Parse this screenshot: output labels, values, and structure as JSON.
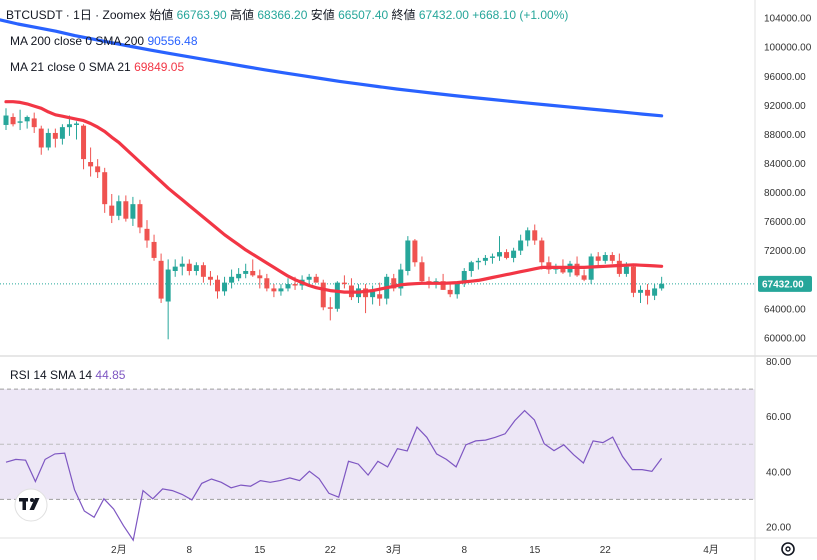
{
  "header": {
    "symbol": "BTCUSDT",
    "interval": "1日",
    "exchange": "Zoomex",
    "ohlc_labels": {
      "open": "始値",
      "high": "高値",
      "low": "安値",
      "close": "終値"
    },
    "open": "66763.90",
    "high": "68366.20",
    "low": "66507.40",
    "close": "67432.00",
    "change": "+668.10",
    "change_pct": "(+1.00%)"
  },
  "legends": {
    "ma200_label": "MA 200 close 0 SMA 200",
    "ma200_value": "90556.48",
    "ma21_label": "MA 21 close 0 SMA 21",
    "ma21_value": "69849.05",
    "rsi_label": "RSI 14 SMA 14",
    "rsi_value": "44.85"
  },
  "colors": {
    "up": "#26a69a",
    "down": "#ef5350",
    "ma200": "#2962ff",
    "ma21": "#f23645",
    "rsi": "#7e57c2",
    "rsi_band": "#ede7f6",
    "last_price_tag": "#26a69a"
  },
  "last_price_tag": "67432.00",
  "chart_data": [
    {
      "type": "candlestick",
      "title": "BTCUSDT · 1日 · Zoomex",
      "price_axis_ticks": [
        60000,
        64000,
        68000,
        72000,
        76000,
        80000,
        84000,
        88000,
        92000,
        96000,
        100000,
        104000
      ],
      "price_axis_labels": [
        "60000.00",
        "64000.00",
        "68000.00",
        "72000.00",
        "76000.00",
        "80000.00",
        "84000.00",
        "88000.00",
        "92000.00",
        "96000.00",
        "100000.00",
        "104000.00"
      ],
      "ylim": [
        57500,
        106500
      ],
      "x_tick_labels": [
        {
          "label": "2月",
          "index": 16
        },
        {
          "label": "8",
          "index": 26
        },
        {
          "label": "15",
          "index": 36
        },
        {
          "label": "22",
          "index": 46
        },
        {
          "label": "3月",
          "index": 55
        },
        {
          "label": "8",
          "index": 65
        },
        {
          "label": "15",
          "index": 75
        },
        {
          "label": "22",
          "index": 85
        },
        {
          "label": "4月",
          "index": 100
        }
      ],
      "candles": [
        [
          89300,
          91600,
          88600,
          90600
        ],
        [
          90400,
          90900,
          89100,
          89400
        ],
        [
          89600,
          91400,
          88600,
          89800
        ],
        [
          89800,
          90600,
          88800,
          90400
        ],
        [
          90200,
          91000,
          88200,
          89000
        ],
        [
          88800,
          89200,
          85200,
          86200
        ],
        [
          86200,
          88800,
          85800,
          88200
        ],
        [
          88200,
          88800,
          86200,
          87400
        ],
        [
          87400,
          89400,
          86600,
          89000
        ],
        [
          89000,
          90600,
          87800,
          89400
        ],
        [
          89300,
          89800,
          87300,
          89500
        ],
        [
          89200,
          89400,
          83200,
          84600
        ],
        [
          84200,
          86200,
          82200,
          83600
        ],
        [
          83600,
          84600,
          82000,
          82800
        ],
        [
          82800,
          83400,
          77200,
          78400
        ],
        [
          78200,
          79800,
          75800,
          76800
        ],
        [
          76800,
          79600,
          76200,
          78800
        ],
        [
          78800,
          79600,
          76000,
          76400
        ],
        [
          76400,
          79400,
          75400,
          78400
        ],
        [
          78400,
          79000,
          74400,
          75200
        ],
        [
          75000,
          76200,
          72400,
          73400
        ],
        [
          73200,
          74200,
          70600,
          71000
        ],
        [
          70600,
          71600,
          64800,
          65400
        ],
        [
          65000,
          70800,
          59800,
          69400
        ],
        [
          69200,
          70800,
          68400,
          69800
        ],
        [
          69800,
          71200,
          68600,
          70200
        ],
        [
          70200,
          70800,
          68600,
          69200
        ],
        [
          69200,
          70400,
          68600,
          70000
        ],
        [
          70000,
          70400,
          67600,
          68400
        ],
        [
          68400,
          69200,
          67200,
          68000
        ],
        [
          68000,
          68600,
          65400,
          66400
        ],
        [
          66400,
          68400,
          65800,
          67600
        ],
        [
          67600,
          69400,
          66800,
          68400
        ],
        [
          68200,
          69600,
          67800,
          68800
        ],
        [
          68800,
          70200,
          68200,
          69200
        ],
        [
          69200,
          70800,
          68400,
          68600
        ],
        [
          68600,
          69400,
          66800,
          68200
        ],
        [
          68200,
          68800,
          66400,
          66800
        ],
        [
          66800,
          67400,
          65600,
          66400
        ],
        [
          66400,
          67400,
          65800,
          66800
        ],
        [
          66800,
          68200,
          66400,
          67400
        ],
        [
          67400,
          68400,
          66600,
          67200
        ],
        [
          67200,
          68600,
          66600,
          68000
        ],
        [
          68000,
          68800,
          67400,
          68400
        ],
        [
          68400,
          68800,
          67600,
          67600
        ],
        [
          67600,
          68000,
          63800,
          64200
        ],
        [
          64200,
          65600,
          62400,
          64000
        ],
        [
          64000,
          67800,
          63600,
          67600
        ],
        [
          67600,
          68600,
          66800,
          67400
        ],
        [
          67200,
          68200,
          65200,
          65600
        ],
        [
          65600,
          67400,
          64800,
          66800
        ],
        [
          66800,
          67400,
          63400,
          65600
        ],
        [
          65600,
          67200,
          64600,
          66400
        ],
        [
          66000,
          67600,
          64400,
          65400
        ],
        [
          65400,
          68800,
          64600,
          68400
        ],
        [
          68200,
          68800,
          66400,
          66800
        ],
        [
          66800,
          70200,
          65800,
          69400
        ],
        [
          69200,
          74000,
          68600,
          73400
        ],
        [
          73400,
          73600,
          69800,
          70400
        ],
        [
          70400,
          71200,
          67400,
          67800
        ],
        [
          67800,
          68400,
          66800,
          67400
        ],
        [
          67400,
          68200,
          66800,
          67800
        ],
        [
          67800,
          68800,
          66600,
          66600
        ],
        [
          66600,
          67400,
          65600,
          66000
        ],
        [
          66000,
          67800,
          65400,
          67600
        ],
        [
          67600,
          69600,
          67000,
          69200
        ],
        [
          69200,
          70600,
          68400,
          70400
        ],
        [
          70400,
          71000,
          69400,
          70600
        ],
        [
          70600,
          71400,
          70000,
          71000
        ],
        [
          71000,
          71600,
          70200,
          71200
        ],
        [
          71200,
          74000,
          70600,
          71800
        ],
        [
          71800,
          72200,
          70800,
          71000
        ],
        [
          71000,
          72400,
          70400,
          72000
        ],
        [
          72000,
          74200,
          71400,
          73400
        ],
        [
          73400,
          75200,
          72600,
          74800
        ],
        [
          74800,
          75600,
          72800,
          73400
        ],
        [
          73400,
          73800,
          69400,
          70400
        ],
        [
          70400,
          71200,
          68800,
          69400
        ],
        [
          69400,
          70200,
          68800,
          69800
        ],
        [
          69800,
          70800,
          68800,
          69000
        ],
        [
          69000,
          70600,
          68400,
          70200
        ],
        [
          70200,
          71200,
          68400,
          68600
        ],
        [
          68600,
          69400,
          67800,
          68000
        ],
        [
          68000,
          71600,
          67400,
          71200
        ],
        [
          71200,
          71800,
          70000,
          70600
        ],
        [
          70600,
          71800,
          70200,
          71400
        ],
        [
          71400,
          71800,
          70200,
          70600
        ],
        [
          70600,
          71600,
          68400,
          68800
        ],
        [
          68800,
          70400,
          68400,
          69800
        ],
        [
          69800,
          70000,
          65600,
          66200
        ],
        [
          66200,
          67200,
          64800,
          66600
        ],
        [
          66600,
          67400,
          64600,
          65800
        ],
        [
          65800,
          67400,
          65200,
          66800
        ],
        [
          66800,
          68400,
          66500,
          67432
        ]
      ],
      "ma200": [
        103800,
        103200,
        102700,
        102200,
        101600,
        101100,
        100600,
        100100,
        99600,
        99150,
        98700,
        98250,
        97800,
        97350,
        96900,
        96500,
        96100,
        95700,
        95300,
        94950,
        94600,
        94250,
        93950,
        93650,
        93350,
        93080,
        92820,
        92560,
        92300,
        92050,
        91800,
        91550,
        91300,
        91050,
        90800,
        90556
      ],
      "ma200_start_index": 58,
      "ma21": [
        92500,
        92500,
        92400,
        92200,
        91900,
        91600,
        91100,
        90700,
        90500,
        90300,
        90100,
        89900,
        89500,
        89000,
        88400,
        87600,
        86900,
        86000,
        85100,
        84200,
        83300,
        82400,
        81500,
        80600,
        79800,
        79000,
        78200,
        77400,
        76600,
        75800,
        75000,
        74200,
        73500,
        72800,
        72100,
        71500,
        70900,
        70300,
        69700,
        69100,
        68500,
        68000,
        67600,
        67200,
        66900,
        66700,
        66500,
        66400,
        66300,
        66300,
        66300,
        66400,
        66500,
        66700,
        66900,
        67100,
        67300,
        67400,
        67450,
        67500,
        67500,
        67500,
        67500,
        67550,
        67600,
        67700,
        67800,
        67900,
        68100,
        68300,
        68500,
        68700,
        68900,
        69100,
        69300,
        69500,
        69700,
        69700,
        69700,
        69700,
        69700,
        69700,
        69700,
        69750,
        69800,
        69850,
        69900,
        69950,
        70000,
        70050,
        70000,
        69950,
        69900,
        69849
      ]
    },
    {
      "type": "line",
      "title": "RSI 14 SMA 14",
      "ylim": [
        16,
        82
      ],
      "y_ticks": [
        20,
        40,
        60,
        80
      ],
      "y_tick_labels": [
        "20.00",
        "40.00",
        "60.00",
        "80.00"
      ],
      "band": [
        30,
        70
      ],
      "midline": 50,
      "rsi": [
        43.5,
        44.5,
        44.2,
        36.5,
        44.5,
        46.5,
        46.8,
        33.5,
        25.8,
        23.5,
        30.2,
        26.5,
        20.5,
        15.2,
        33.2,
        30.2,
        33.8,
        33.2,
        31.8,
        29.8,
        35.8,
        37.4,
        36.2,
        34.2,
        35.2,
        34.8,
        36.8,
        36.2,
        36.8,
        37.8,
        36.8,
        40.2,
        37.5,
        32.2,
        30.8,
        43.8,
        42.8,
        38.8,
        43.8,
        41.8,
        48.4,
        47.6,
        56.2,
        52.5,
        46.5,
        44.5,
        41.8,
        49.8,
        51.2,
        51.5,
        52.5,
        53.8,
        58.6,
        62.2,
        58.8,
        50.2,
        47.7,
        49.8,
        46.2,
        43.2,
        51.2,
        50.6,
        52.6,
        45.6,
        40.8,
        40.8,
        40.2,
        44.85
      ]
    }
  ]
}
